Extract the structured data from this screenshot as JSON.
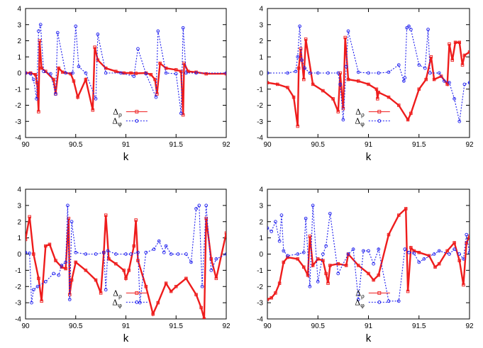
{
  "colors": {
    "rho": "#ee1c1c",
    "phi": "#1c1cee"
  },
  "chart_data": [
    {
      "type": "line",
      "panel": "top-left",
      "xlabel": "k",
      "ylabel": "",
      "xlim": [
        90,
        92
      ],
      "ylim": [
        -4,
        4
      ],
      "xticks": [
        "90",
        "90.5",
        "91",
        "91.5",
        "92"
      ],
      "yticks": [
        "-4",
        "-3",
        "-2",
        "-1",
        "0",
        "1",
        "2",
        "3",
        "4"
      ],
      "legend": [
        {
          "symbol": "Δ",
          "sub": "ρ"
        },
        {
          "symbol": "Δ",
          "sub": "φ"
        }
      ],
      "series": [
        {
          "name": "Δρ",
          "x": [
            90.0,
            90.05,
            90.1,
            90.115,
            90.13,
            90.14,
            90.16,
            90.2,
            90.28,
            90.3,
            90.33,
            90.37,
            90.45,
            90.48,
            90.52,
            90.6,
            90.67,
            90.69,
            90.72,
            90.8,
            90.9,
            90.98,
            91.05,
            91.1,
            91.2,
            91.25,
            91.29,
            91.31,
            91.34,
            91.4,
            91.5,
            91.55,
            91.57,
            91.58,
            91.62,
            91.7,
            91.8,
            92.0
          ],
          "values": [
            0,
            0,
            -0.1,
            -0.6,
            -2.4,
            2.0,
            0.3,
            0.1,
            -0.4,
            -1.3,
            0.3,
            0.05,
            -0.05,
            -0.5,
            -1.5,
            -0.4,
            -2.3,
            1.6,
            0.8,
            0.3,
            0.1,
            0,
            0,
            -0.02,
            0,
            -0.1,
            -0.4,
            -1.3,
            0.6,
            0.3,
            0.2,
            0.1,
            -2.6,
            0.6,
            0.1,
            0.05,
            -0.05,
            -0.05
          ]
        },
        {
          "name": "Δφ",
          "x": [
            90.0,
            90.05,
            90.08,
            90.11,
            90.13,
            90.15,
            90.18,
            90.25,
            90.3,
            90.32,
            90.4,
            90.47,
            90.5,
            90.53,
            90.6,
            90.7,
            90.72,
            90.8,
            90.95,
            91.08,
            91.12,
            91.2,
            91.3,
            91.32,
            91.4,
            91.5,
            91.55,
            91.57,
            91.6,
            91.7,
            92.0
          ],
          "values": [
            0,
            -0.05,
            -0.4,
            -1.6,
            2.6,
            3.0,
            0.1,
            -0.05,
            -1.3,
            2.5,
            0,
            0,
            2.9,
            0.4,
            0,
            -1.6,
            2.4,
            0,
            0,
            -0.2,
            1.5,
            -0.05,
            -1.5,
            2.6,
            0,
            -0.05,
            -2.5,
            2.8,
            0,
            0,
            0
          ]
        }
      ]
    },
    {
      "type": "line",
      "panel": "top-right",
      "xlabel": "k",
      "ylabel": "",
      "xlim": [
        90,
        92
      ],
      "ylim": [
        -4,
        4
      ],
      "xticks": [
        "90",
        "90.5",
        "91",
        "91.5",
        "92"
      ],
      "yticks": [
        "-4",
        "-3",
        "-2",
        "-1",
        "0",
        "1",
        "2",
        "3",
        "4"
      ],
      "legend": [
        {
          "symbol": "Δ",
          "sub": "ρ"
        },
        {
          "symbol": "Δ",
          "sub": "φ"
        }
      ],
      "series": [
        {
          "name": "Δρ",
          "x": [
            90.0,
            90.1,
            90.2,
            90.26,
            90.3,
            90.31,
            90.33,
            90.36,
            90.38,
            90.45,
            90.55,
            90.65,
            90.7,
            90.72,
            90.75,
            90.77,
            90.8,
            90.9,
            91.0,
            91.08,
            91.09,
            91.1,
            91.2,
            91.3,
            91.39,
            91.42,
            91.5,
            91.57,
            91.62,
            91.65,
            91.72,
            91.78,
            91.8,
            91.83,
            91.86,
            91.9,
            91.93,
            91.95,
            92.0
          ],
          "values": [
            -0.6,
            -0.7,
            -0.9,
            -1.5,
            -3.3,
            0.3,
            1.5,
            -0.4,
            2.1,
            -0.7,
            -1.1,
            -1.6,
            -2.4,
            0,
            -2.2,
            2.2,
            -0.4,
            -0.5,
            -0.7,
            -1.0,
            -1.6,
            -1.2,
            -1.5,
            -2.0,
            -2.9,
            -2.5,
            -1.0,
            -0.4,
            1.0,
            -0.4,
            -0.2,
            -0.7,
            1.8,
            0.8,
            1.9,
            1.9,
            0.5,
            1.1,
            1.3
          ]
        },
        {
          "name": "Δφ",
          "x": [
            90.0,
            90.2,
            90.28,
            90.3,
            90.32,
            90.34,
            90.37,
            90.42,
            90.5,
            90.6,
            90.7,
            90.72,
            90.75,
            90.78,
            90.8,
            90.9,
            91.0,
            91.1,
            91.2,
            91.3,
            91.35,
            91.36,
            91.38,
            91.4,
            91.42,
            91.5,
            91.56,
            91.59,
            91.61,
            91.7,
            91.75,
            91.8,
            91.85,
            91.9,
            91.95,
            92.0
          ],
          "values": [
            0,
            0,
            0.1,
            1.0,
            2.9,
            0.8,
            0.3,
            0,
            0,
            0,
            0,
            -0.7,
            -2.9,
            0.4,
            2.6,
            0.05,
            0,
            0,
            0.05,
            0.5,
            -0.5,
            -0.3,
            2.8,
            2.9,
            2.7,
            0.5,
            0.3,
            2.7,
            0,
            0,
            -0.5,
            -0.6,
            -1.6,
            -3.0,
            -0.7,
            -0.6
          ]
        }
      ]
    },
    {
      "type": "line",
      "panel": "bottom-left",
      "xlabel": "k",
      "ylabel": "",
      "xlim": [
        90,
        92
      ],
      "ylim": [
        -4,
        4
      ],
      "xticks": [
        "90",
        "90.5",
        "91",
        "91.5",
        "92"
      ],
      "yticks": [
        "-4",
        "-3",
        "-2",
        "-1",
        "0",
        "1",
        "2",
        "3",
        "4"
      ],
      "legend": [
        {
          "symbol": "Δ",
          "sub": "ρ"
        },
        {
          "symbol": "Δ",
          "sub": "φ"
        }
      ],
      "series": [
        {
          "name": "Δρ",
          "x": [
            90.0,
            90.04,
            90.08,
            90.13,
            90.16,
            90.2,
            90.24,
            90.3,
            90.36,
            90.4,
            90.43,
            90.44,
            90.46,
            90.5,
            90.6,
            90.7,
            90.75,
            90.78,
            90.8,
            90.83,
            90.9,
            90.98,
            91.0,
            91.03,
            91.08,
            91.1,
            91.12,
            91.2,
            91.27,
            91.32,
            91.4,
            91.45,
            91.5,
            91.6,
            91.7,
            91.75,
            91.78,
            91.8,
            91.85,
            91.9,
            92.0
          ],
          "values": [
            0.9,
            2.3,
            0,
            -1.5,
            -2.9,
            0.5,
            0.6,
            -0.4,
            -0.8,
            -0.9,
            2.2,
            -2.5,
            -1.6,
            -0.5,
            -1.0,
            -1.6,
            -2.4,
            0.1,
            2.4,
            -0.3,
            -0.6,
            -1.0,
            -1.5,
            -1.0,
            0.5,
            2.1,
            -0.4,
            -2.0,
            -3.7,
            -3.0,
            -1.8,
            -2.3,
            -2.0,
            -1.5,
            -2.5,
            -3.3,
            -4.0,
            2.2,
            -0.3,
            -1.5,
            1.3
          ]
        },
        {
          "name": "Δφ",
          "x": [
            90.0,
            90.04,
            90.06,
            90.08,
            90.12,
            90.2,
            90.28,
            90.33,
            90.36,
            90.4,
            90.42,
            90.44,
            90.46,
            90.5,
            90.6,
            90.7,
            90.78,
            90.8,
            90.82,
            90.9,
            91.0,
            91.05,
            91.12,
            91.14,
            91.2,
            91.28,
            91.33,
            91.38,
            91.4,
            91.45,
            91.52,
            91.6,
            91.65,
            91.7,
            91.73,
            91.76,
            91.8,
            91.85,
            91.9,
            92.0
          ],
          "values": [
            0.1,
            0.05,
            -3.0,
            -2.2,
            -2.0,
            -1.7,
            -1.2,
            -1.3,
            -0.7,
            -0.5,
            3.0,
            -2.8,
            2.0,
            0.1,
            0,
            0,
            0.1,
            -2.2,
            0.2,
            0,
            0,
            0,
            0.1,
            -3.0,
            0.1,
            0.3,
            0.8,
            0.1,
            0.5,
            0,
            0,
            0,
            -0.5,
            2.8,
            3.0,
            -2.0,
            3.0,
            -1.0,
            -0.3,
            0
          ]
        }
      ]
    },
    {
      "type": "line",
      "panel": "bottom-right",
      "xlabel": "k",
      "ylabel": "",
      "xlim": [
        90,
        92
      ],
      "ylim": [
        -4,
        4
      ],
      "xticks": [
        "90",
        "90.5",
        "91",
        "91.5",
        "92"
      ],
      "yticks": [
        "-4",
        "-3",
        "-2",
        "-1",
        "0",
        "1",
        "2",
        "3",
        "4"
      ],
      "legend": [
        {
          "symbol": "Δ",
          "sub": "ρ"
        },
        {
          "symbol": "Δ",
          "sub": "φ"
        }
      ],
      "series": [
        {
          "name": "Δρ",
          "x": [
            90.0,
            90.04,
            90.08,
            90.12,
            90.16,
            90.2,
            90.3,
            90.36,
            90.4,
            90.42,
            90.45,
            90.5,
            90.55,
            90.58,
            90.6,
            90.62,
            90.7,
            90.78,
            90.8,
            90.9,
            91.0,
            91.05,
            91.1,
            91.2,
            91.3,
            91.37,
            91.39,
            91.42,
            91.45,
            91.5,
            91.6,
            91.66,
            91.7,
            91.78,
            91.85,
            91.9,
            91.94,
            91.97,
            92.0
          ],
          "values": [
            -2.8,
            -2.7,
            -2.4,
            -1.8,
            -0.5,
            -0.2,
            -0.3,
            -0.8,
            -1.3,
            1.1,
            -0.7,
            -0.3,
            -0.4,
            -1.2,
            -1.8,
            -0.7,
            -0.6,
            -0.7,
            0,
            -0.7,
            -1.2,
            -1.6,
            -1.3,
            1.2,
            2.4,
            2.8,
            -2.3,
            0.4,
            0.2,
            0.1,
            -0.1,
            -0.8,
            -0.6,
            0.2,
            0.7,
            -0.4,
            -1.9,
            0.7,
            1.1
          ]
        },
        {
          "name": "Δφ",
          "x": [
            90.0,
            90.04,
            90.08,
            90.12,
            90.14,
            90.16,
            90.2,
            90.3,
            90.36,
            90.38,
            90.42,
            90.45,
            90.5,
            90.55,
            90.58,
            90.62,
            90.7,
            90.8,
            90.85,
            90.9,
            90.95,
            91.0,
            91.05,
            91.1,
            91.2,
            91.3,
            91.36,
            91.4,
            91.45,
            91.5,
            91.55,
            91.65,
            91.7,
            91.8,
            91.85,
            91.9,
            91.94,
            91.97,
            92.0
          ],
          "values": [
            1.6,
            1.4,
            2.0,
            0.8,
            2.4,
            0.2,
            -0.1,
            0,
            0.1,
            2.2,
            -2.0,
            3.0,
            -1.7,
            0,
            0.5,
            2.5,
            -1.2,
            0,
            0.3,
            -2.8,
            0.2,
            0.2,
            -0.6,
            0.3,
            -2.9,
            -2.9,
            0.3,
            0.1,
            0.05,
            -0.5,
            -0.3,
            0,
            0.2,
            0,
            0.3,
            0,
            -0.3,
            1.2,
            0.1
          ]
        }
      ]
    }
  ]
}
